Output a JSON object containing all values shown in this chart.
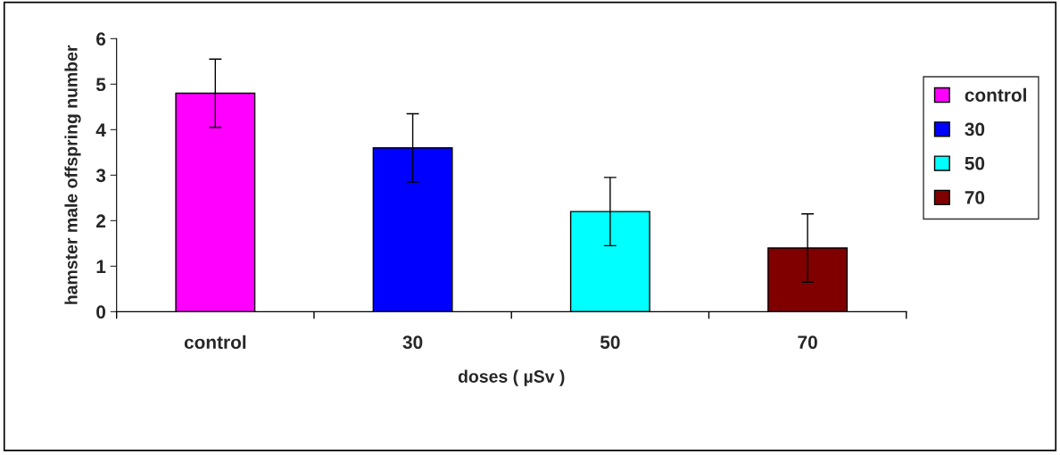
{
  "chart_data": {
    "type": "bar",
    "categories": [
      "control",
      "30",
      "50",
      "70"
    ],
    "series": [
      {
        "name": "control",
        "color": "#ff00ff",
        "values": [
          4.8,
          null,
          null,
          null
        ],
        "errors": [
          0.75,
          null,
          null,
          null
        ]
      },
      {
        "name": "30",
        "color": "#0000ff",
        "values": [
          null,
          3.6,
          null,
          null
        ],
        "errors": [
          null,
          0.75,
          null,
          null
        ]
      },
      {
        "name": "50",
        "color": "#00ffff",
        "values": [
          null,
          null,
          2.2,
          null
        ],
        "errors": [
          null,
          null,
          0.75,
          null
        ]
      },
      {
        "name": "70",
        "color": "#800000",
        "values": [
          null,
          null,
          null,
          1.4
        ],
        "errors": [
          null,
          null,
          null,
          0.75
        ]
      }
    ],
    "xlabel": "doses ( µSv )",
    "ylabel": "hamster male offspring number",
    "ylim": [
      0,
      6
    ],
    "yticks": [
      0,
      1,
      2,
      3,
      4,
      5,
      6
    ],
    "grid": false,
    "legend": "right"
  }
}
